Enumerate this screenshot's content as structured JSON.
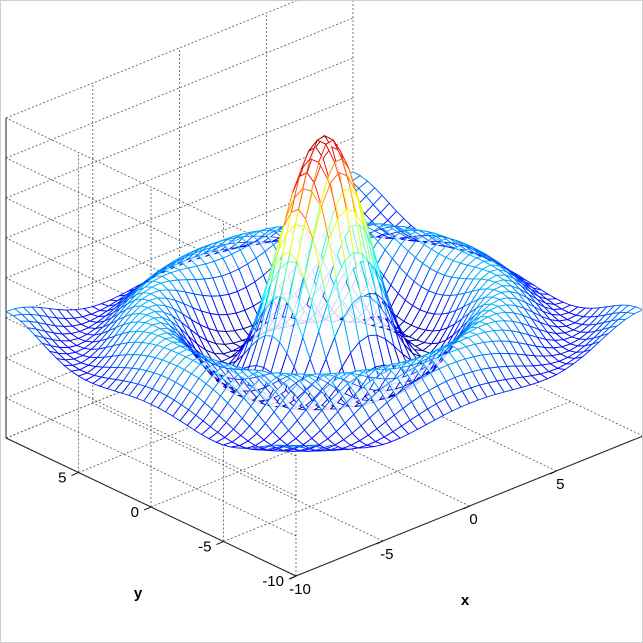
{
  "chart_data": {
    "type": "surface-mesh",
    "title": "",
    "function": "z = sin(r) / r,  r = sqrt(x^2 + y^2)",
    "xlabel": "x",
    "ylabel": "y",
    "zlabel": "",
    "xlim": [
      -10,
      10
    ],
    "ylim": [
      -10,
      10
    ],
    "zlim": [
      -0.6,
      1.1
    ],
    "x_ticks": [
      "-10",
      "-5",
      "0",
      "5"
    ],
    "y_ticks": [
      "-10",
      "-5",
      "0",
      "5"
    ],
    "grid": true,
    "colormap": "jet",
    "colormap_stops": [
      "#00008f",
      "#0000ff",
      "#00ffff",
      "#ffff00",
      "#ff0000",
      "#800000"
    ],
    "peak_value": 1.0,
    "mesh_samples": 41
  }
}
